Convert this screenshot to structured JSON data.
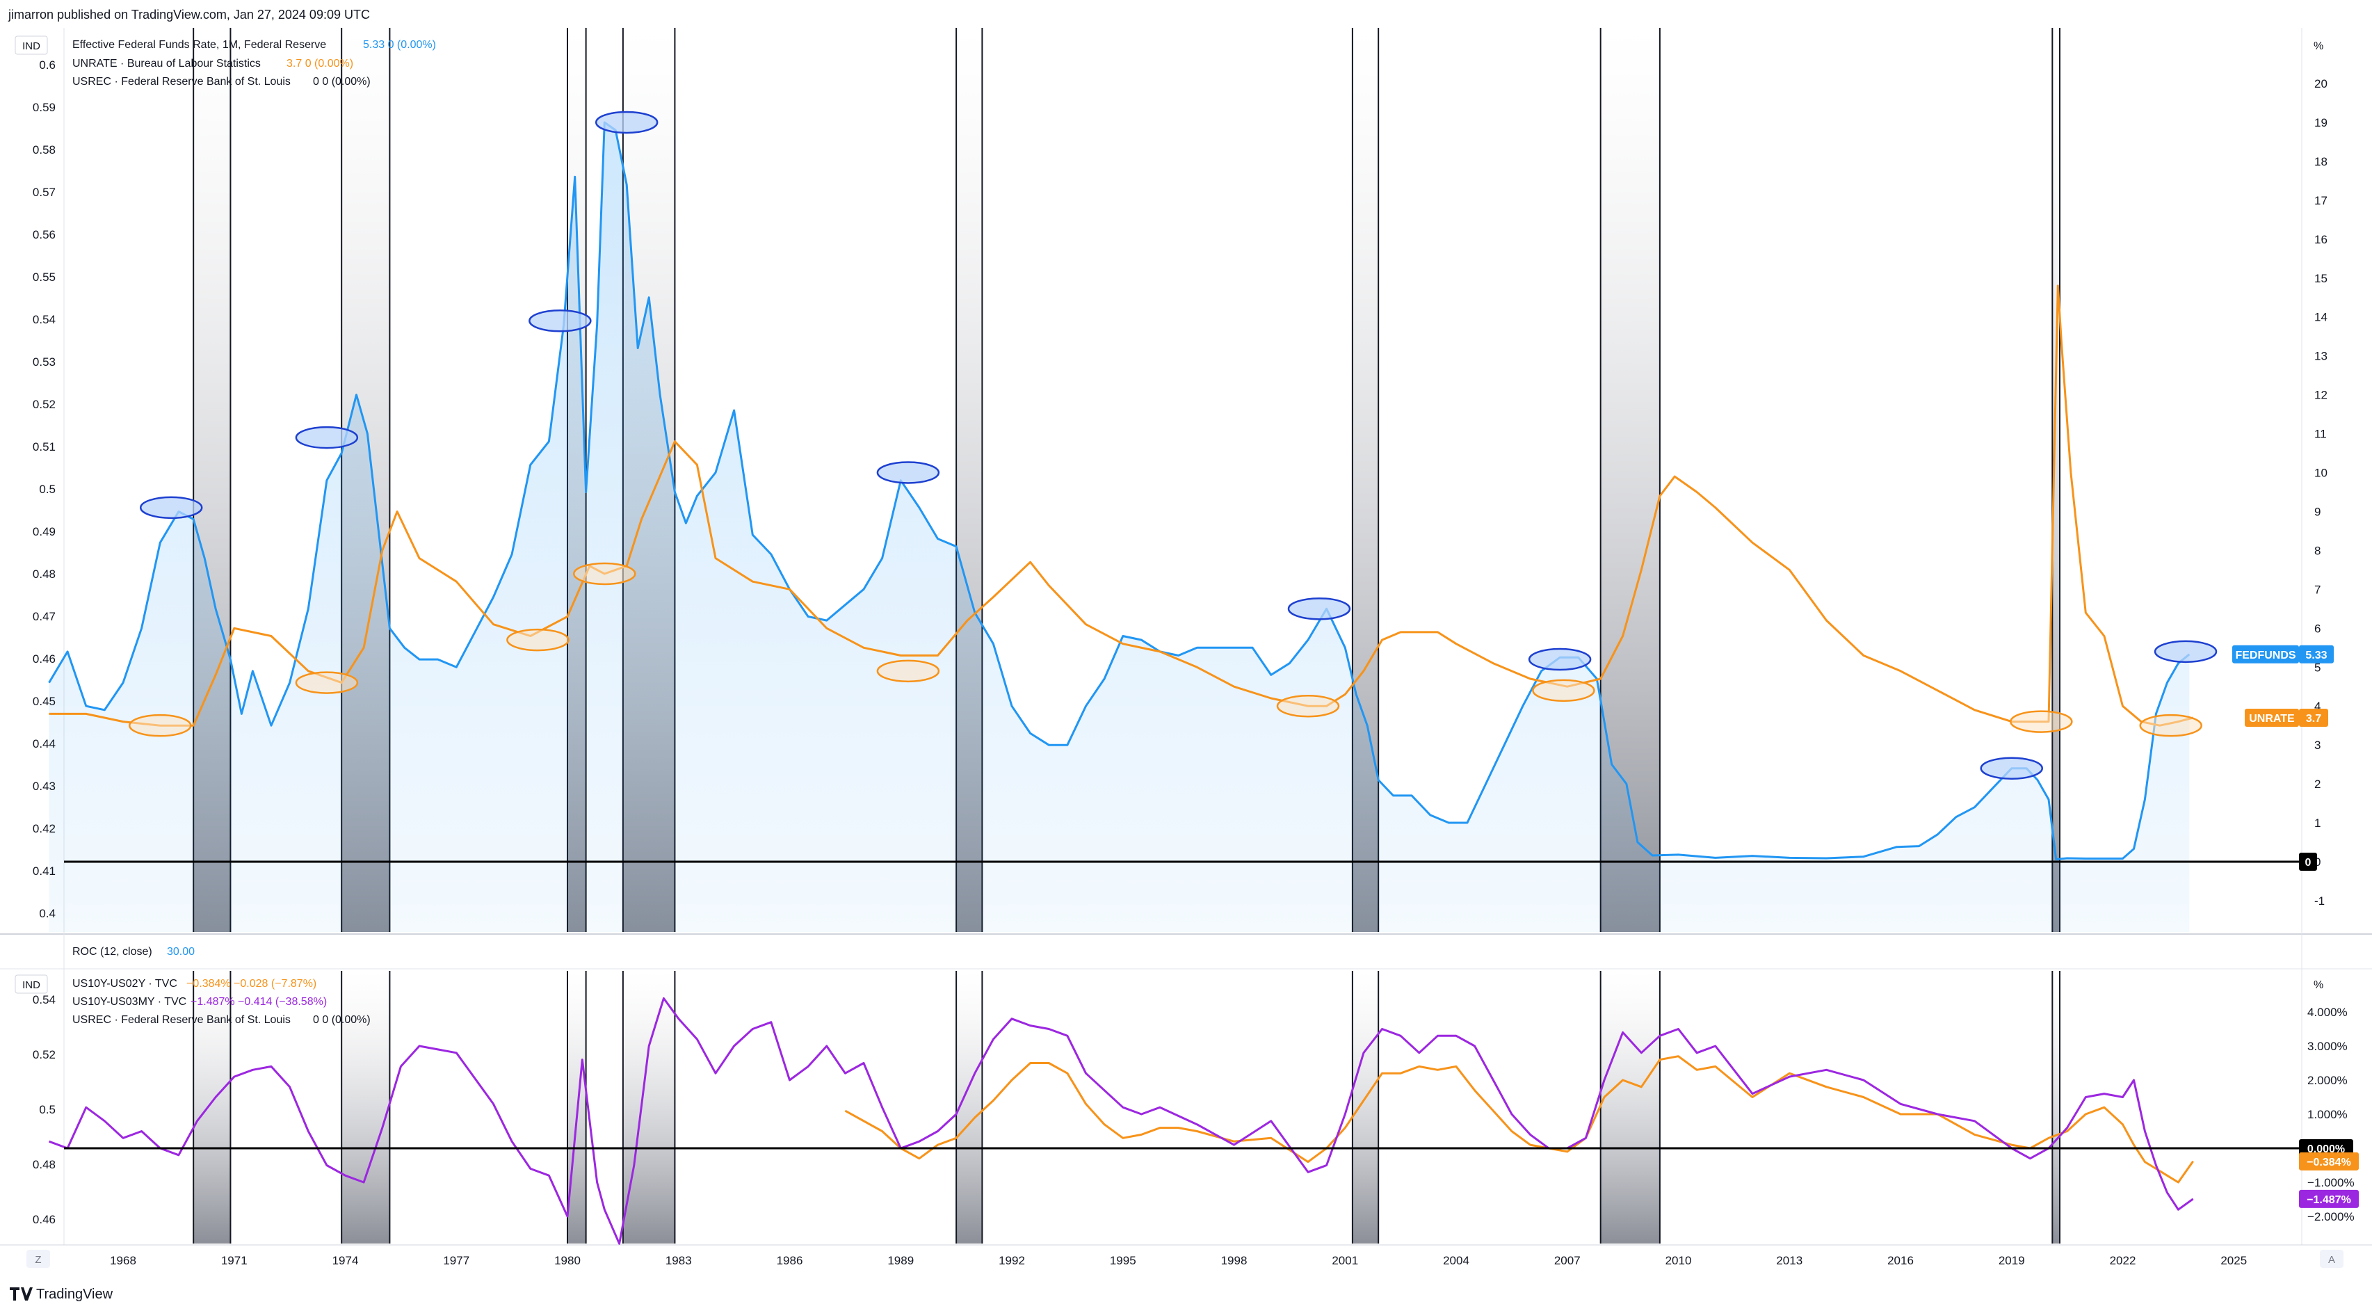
{
  "header": {
    "publisher": "jimarron published on TradingView.com, Jan 27, 2024 09:09 UTC"
  },
  "footer": {
    "brand": "TradingView",
    "left_btn": "Z",
    "right_btn": "A"
  },
  "colors": {
    "fedfunds": "#2196f3",
    "unrate": "#f7931a",
    "us10y_02y": "#f7931a",
    "us10y_03my": "#9c27e0",
    "recession": "#787b86"
  },
  "top_panel": {
    "ind_label": "IND",
    "pct_label": "%",
    "legend": [
      {
        "name": "Effective Federal Funds Rate, 1M, Federal Reserve",
        "value": "5.33 0 (0.00%)",
        "color": "#2196f3"
      },
      {
        "name": "UNRATE · Bureau of Labour Statistics",
        "value": "3.7 0 (0.00%)",
        "color": "#f7931a"
      },
      {
        "name": "USREC · Federal Reserve Bank of St. Louis",
        "value": "0 0 (0.00%)",
        "color": "#131722"
      }
    ],
    "left_axis_ticks": [
      "0.6",
      "0.59",
      "0.58",
      "0.57",
      "0.56",
      "0.55",
      "0.54",
      "0.53",
      "0.52",
      "0.51",
      "0.5",
      "0.49",
      "0.48",
      "0.47",
      "0.46",
      "0.45",
      "0.44",
      "0.43",
      "0.42",
      "0.41",
      "0.4"
    ],
    "right_axis_ticks": [
      "20",
      "19",
      "18",
      "17",
      "16",
      "15",
      "14",
      "13",
      "12",
      "11",
      "10",
      "9",
      "8",
      "7",
      "6",
      "5",
      "4",
      "3",
      "2",
      "1",
      "0",
      "-1"
    ],
    "badges": [
      {
        "text": "FEDFUNDS",
        "value": "5.33",
        "color": "#2196f3"
      },
      {
        "text": "UNRATE",
        "value": "3.7",
        "color": "#f7931a"
      },
      {
        "text": "0",
        "value": "",
        "color": "#000000"
      }
    ]
  },
  "roc_panel": {
    "label": "ROC (12, close)",
    "value": "30.00"
  },
  "bottom_panel": {
    "ind_label": "IND",
    "pct_label": "%",
    "legend": [
      {
        "name": "US10Y-US02Y · TVC",
        "value": "−0.384% −0.028 (−7.87%)",
        "color": "#f7931a"
      },
      {
        "name": "US10Y-US03MY · TVC",
        "value": "−1.487% −0.414 (−38.58%)",
        "color": "#9c27e0"
      },
      {
        "name": "USREC · Federal Reserve Bank of St. Louis",
        "value": "0 0 (0.00%)",
        "color": "#131722"
      }
    ],
    "left_axis_ticks": [
      "0.54",
      "0.52",
      "0.5",
      "0.48",
      "0.46"
    ],
    "right_axis_ticks": [
      "4.000%",
      "3.000%",
      "2.000%",
      "1.000%",
      "0.000%",
      "−1.000%",
      "−2.000%"
    ],
    "badges": [
      {
        "text": "0.000%",
        "color": "#000000"
      },
      {
        "text": "−0.384%",
        "color": "#f7931a"
      },
      {
        "text": "−1.487%",
        "color": "#9c27e0"
      }
    ]
  },
  "x_axis_ticks": [
    "1968",
    "1971",
    "1974",
    "1977",
    "1980",
    "1983",
    "1986",
    "1989",
    "1992",
    "1995",
    "1998",
    "2001",
    "2004",
    "2007",
    "2010",
    "2013",
    "2016",
    "2019",
    "2022",
    "2025"
  ],
  "chart_data": [
    {
      "type": "line",
      "title": "",
      "x_unit": "year",
      "ylabel_right": "%",
      "recessions": [
        [
          1969.9,
          1970.9
        ],
        [
          1973.9,
          1975.2
        ],
        [
          1980.0,
          1980.5
        ],
        [
          1981.5,
          1982.9
        ],
        [
          1990.5,
          1991.2
        ],
        [
          2001.2,
          2001.9
        ],
        [
          2007.9,
          2009.5
        ],
        [
          2020.1,
          2020.3
        ]
      ],
      "series": [
        {
          "name": "Effective Federal Funds Rate",
          "color": "#2196f3",
          "area": true,
          "x": [
            1966.0,
            1966.5,
            1967.0,
            1967.5,
            1968.0,
            1968.5,
            1969.0,
            1969.5,
            1969.9,
            1970.2,
            1970.5,
            1970.9,
            1971.2,
            1971.5,
            1972.0,
            1972.5,
            1973.0,
            1973.5,
            1973.9,
            1974.3,
            1974.6,
            1974.9,
            1975.2,
            1975.6,
            1976.0,
            1976.5,
            1977.0,
            1977.5,
            1978.0,
            1978.5,
            1979.0,
            1979.5,
            1979.9,
            1980.2,
            1980.5,
            1980.8,
            1981.0,
            1981.3,
            1981.6,
            1981.9,
            1982.2,
            1982.5,
            1982.9,
            1983.2,
            1983.5,
            1984.0,
            1984.5,
            1985.0,
            1985.5,
            1986.0,
            1986.5,
            1987.0,
            1987.5,
            1988.0,
            1988.5,
            1989.0,
            1989.5,
            1990.0,
            1990.5,
            1991.0,
            1991.5,
            1992.0,
            1992.5,
            1993.0,
            1993.5,
            1994.0,
            1994.5,
            1995.0,
            1995.5,
            1996.0,
            1996.5,
            1997.0,
            1997.5,
            1998.0,
            1998.5,
            1999.0,
            1999.5,
            2000.0,
            2000.5,
            2001.0,
            2001.3,
            2001.6,
            2001.9,
            2002.3,
            2002.8,
            2003.3,
            2003.8,
            2004.3,
            2004.8,
            2005.3,
            2005.8,
            2006.3,
            2006.8,
            2007.3,
            2007.8,
            2008.2,
            2008.6,
            2008.9,
            2009.3,
            2010.0,
            2011.0,
            2012.0,
            2013.0,
            2014.0,
            2015.0,
            2015.9,
            2016.5,
            2017.0,
            2017.5,
            2018.0,
            2018.5,
            2019.0,
            2019.4,
            2019.7,
            2020.0,
            2020.2,
            2020.5,
            2021.0,
            2021.5,
            2022.0,
            2022.3,
            2022.6,
            2022.9,
            2023.2,
            2023.5,
            2023.8
          ],
          "values": [
            4.6,
            5.4,
            4.0,
            3.9,
            4.6,
            6.0,
            8.2,
            9.0,
            8.8,
            7.8,
            6.5,
            5.2,
            3.8,
            4.9,
            3.5,
            4.6,
            6.5,
            9.8,
            10.5,
            12.0,
            11.0,
            8.5,
            6.0,
            5.5,
            5.2,
            5.2,
            5.0,
            5.9,
            6.8,
            7.9,
            10.2,
            10.8,
            13.8,
            17.6,
            9.5,
            13.8,
            19.0,
            18.8,
            17.4,
            13.2,
            14.5,
            12.0,
            9.5,
            8.7,
            9.4,
            10.0,
            11.6,
            8.4,
            7.9,
            7.0,
            6.3,
            6.2,
            6.6,
            7.0,
            7.8,
            9.8,
            9.1,
            8.3,
            8.1,
            6.4,
            5.6,
            4.0,
            3.3,
            3.0,
            3.0,
            4.0,
            4.7,
            5.8,
            5.7,
            5.4,
            5.3,
            5.5,
            5.5,
            5.5,
            5.5,
            4.8,
            5.1,
            5.7,
            6.5,
            5.5,
            4.3,
            3.5,
            2.1,
            1.7,
            1.7,
            1.2,
            1.0,
            1.0,
            2.0,
            3.0,
            4.0,
            4.9,
            5.25,
            5.25,
            4.7,
            2.5,
            2.0,
            0.5,
            0.16,
            0.18,
            0.1,
            0.15,
            0.1,
            0.09,
            0.13,
            0.38,
            0.4,
            0.7,
            1.15,
            1.4,
            1.9,
            2.4,
            2.4,
            2.1,
            1.6,
            0.06,
            0.09,
            0.08,
            0.08,
            0.08,
            0.33,
            1.6,
            3.8,
            4.6,
            5.1,
            5.33
          ]
        },
        {
          "name": "UNRATE",
          "color": "#f7931a",
          "area": false,
          "x": [
            1966.0,
            1967.0,
            1968.0,
            1969.0,
            1969.9,
            1970.5,
            1971.0,
            1972.0,
            1973.0,
            1973.9,
            1974.5,
            1975.0,
            1975.4,
            1976.0,
            1977.0,
            1978.0,
            1979.0,
            1980.0,
            1980.6,
            1981.0,
            1981.6,
            1982.0,
            1982.9,
            1983.5,
            1984.0,
            1985.0,
            1986.0,
            1987.0,
            1988.0,
            1989.0,
            1990.0,
            1990.8,
            1991.5,
            1992.5,
            1993.0,
            1994.0,
            1995.0,
            1996.0,
            1997.0,
            1998.0,
            1999.0,
            2000.0,
            2000.5,
            2001.0,
            2001.5,
            2002.0,
            2002.5,
            2003.5,
            2004.0,
            2005.0,
            2006.0,
            2007.0,
            2007.9,
            2008.5,
            2009.0,
            2009.5,
            2009.9,
            2010.5,
            2011.0,
            2012.0,
            2013.0,
            2014.0,
            2015.0,
            2016.0,
            2017.0,
            2018.0,
            2019.0,
            2020.0,
            2020.25,
            2020.35,
            2020.6,
            2021.0,
            2021.5,
            2022.0,
            2022.5,
            2023.0,
            2023.5,
            2023.9
          ],
          "values": [
            3.8,
            3.8,
            3.6,
            3.5,
            3.5,
            4.8,
            6.0,
            5.8,
            4.9,
            4.6,
            5.5,
            8.0,
            9.0,
            7.8,
            7.2,
            6.1,
            5.8,
            6.3,
            7.6,
            7.4,
            7.6,
            8.8,
            10.8,
            10.2,
            7.8,
            7.2,
            7.0,
            6.0,
            5.5,
            5.3,
            5.3,
            6.2,
            6.8,
            7.7,
            7.1,
            6.1,
            5.6,
            5.4,
            5.0,
            4.5,
            4.2,
            4.0,
            4.0,
            4.3,
            4.9,
            5.7,
            5.9,
            5.9,
            5.6,
            5.1,
            4.7,
            4.5,
            4.7,
            5.8,
            7.5,
            9.4,
            9.9,
            9.5,
            9.1,
            8.2,
            7.5,
            6.2,
            5.3,
            4.9,
            4.4,
            3.9,
            3.6,
            3.6,
            14.8,
            13.3,
            10.0,
            6.4,
            5.8,
            4.0,
            3.6,
            3.5,
            3.6,
            3.7
          ]
        }
      ]
    },
    {
      "type": "line",
      "title": "",
      "x_unit": "year",
      "ylabel_right": "%",
      "recessions": [
        [
          1969.9,
          1970.9
        ],
        [
          1973.9,
          1975.2
        ],
        [
          1980.0,
          1980.5
        ],
        [
          1981.5,
          1982.9
        ],
        [
          1990.5,
          1991.2
        ],
        [
          2001.2,
          2001.9
        ],
        [
          2007.9,
          2009.5
        ],
        [
          2020.1,
          2020.3
        ]
      ],
      "series": [
        {
          "name": "US10Y-US02Y",
          "color": "#f7931a",
          "x": [
            1987.5,
            1988.5,
            1989.0,
            1989.5,
            1990.0,
            1990.5,
            1991.0,
            1991.5,
            1992.0,
            1992.5,
            1993.0,
            1993.5,
            1994.0,
            1994.5,
            1995.0,
            1995.5,
            1996.0,
            1996.5,
            1997.0,
            1998.0,
            1999.0,
            2000.0,
            2000.5,
            2001.0,
            2001.5,
            2002.0,
            2002.5,
            2003.0,
            2003.5,
            2004.0,
            2004.5,
            2005.0,
            2005.5,
            2006.0,
            2006.5,
            2007.0,
            2007.5,
            2008.0,
            2008.5,
            2009.0,
            2009.5,
            2010.0,
            2010.5,
            2011.0,
            2012.0,
            2013.0,
            2014.0,
            2015.0,
            2016.0,
            2017.0,
            2018.0,
            2019.0,
            2019.5,
            2020.0,
            2020.5,
            2021.0,
            2021.5,
            2022.0,
            2022.3,
            2022.6,
            2022.9,
            2023.2,
            2023.5,
            2023.9
          ],
          "values": [
            1.1,
            0.5,
            0.0,
            -0.3,
            0.1,
            0.3,
            0.9,
            1.4,
            2.0,
            2.5,
            2.5,
            2.2,
            1.3,
            0.7,
            0.3,
            0.4,
            0.6,
            0.6,
            0.5,
            0.2,
            0.3,
            -0.4,
            0.0,
            0.6,
            1.4,
            2.2,
            2.2,
            2.4,
            2.3,
            2.4,
            1.7,
            1.1,
            0.5,
            0.1,
            0.0,
            -0.1,
            0.3,
            1.5,
            2.0,
            1.8,
            2.6,
            2.7,
            2.3,
            2.4,
            1.5,
            2.2,
            1.8,
            1.5,
            1.0,
            1.0,
            0.4,
            0.1,
            0.0,
            0.3,
            0.5,
            1.0,
            1.2,
            0.7,
            0.1,
            -0.4,
            -0.6,
            -0.8,
            -1.0,
            -0.384
          ]
        },
        {
          "name": "US10Y-US03MY",
          "color": "#9c27e0",
          "x": [
            1966.0,
            1966.5,
            1967.0,
            1967.5,
            1968.0,
            1968.5,
            1969.0,
            1969.5,
            1970.0,
            1970.5,
            1971.0,
            1971.5,
            1972.0,
            1972.5,
            1973.0,
            1973.5,
            1974.0,
            1974.5,
            1975.0,
            1975.5,
            1976.0,
            1977.0,
            1978.0,
            1978.5,
            1979.0,
            1979.5,
            1980.0,
            1980.4,
            1980.8,
            1981.0,
            1981.4,
            1981.8,
            1982.2,
            1982.6,
            1983.0,
            1983.5,
            1984.0,
            1984.5,
            1985.0,
            1985.5,
            1986.0,
            1986.5,
            1987.0,
            1987.5,
            1988.0,
            1988.5,
            1989.0,
            1989.5,
            1990.0,
            1990.5,
            1991.0,
            1991.5,
            1992.0,
            1992.5,
            1993.0,
            1993.5,
            1994.0,
            1994.5,
            1995.0,
            1995.5,
            1996.0,
            1997.0,
            1998.0,
            1999.0,
            2000.0,
            2000.5,
            2001.0,
            2001.5,
            2002.0,
            2002.5,
            2003.0,
            2003.5,
            2004.0,
            2004.5,
            2005.0,
            2005.5,
            2006.0,
            2006.5,
            2007.0,
            2007.5,
            2008.0,
            2008.5,
            2009.0,
            2009.5,
            2010.0,
            2010.5,
            2011.0,
            2012.0,
            2013.0,
            2014.0,
            2015.0,
            2016.0,
            2017.0,
            2018.0,
            2019.0,
            2019.5,
            2020.0,
            2020.5,
            2021.0,
            2021.5,
            2022.0,
            2022.3,
            2022.6,
            2022.9,
            2023.2,
            2023.5,
            2023.9
          ],
          "values": [
            0.2,
            0.0,
            1.2,
            0.8,
            0.3,
            0.5,
            0.0,
            -0.2,
            0.8,
            1.5,
            2.1,
            2.3,
            2.4,
            1.8,
            0.5,
            -0.5,
            -0.8,
            -1.0,
            0.6,
            2.4,
            3.0,
            2.8,
            1.3,
            0.2,
            -0.6,
            -0.8,
            -2.0,
            2.6,
            -1.0,
            -1.8,
            -2.8,
            -0.5,
            3.0,
            4.4,
            3.8,
            3.2,
            2.2,
            3.0,
            3.5,
            3.7,
            2.0,
            2.4,
            3.0,
            2.2,
            2.5,
            1.2,
            0.0,
            0.2,
            0.5,
            1.0,
            2.2,
            3.2,
            3.8,
            3.6,
            3.5,
            3.3,
            2.2,
            1.7,
            1.2,
            1.0,
            1.2,
            0.7,
            0.1,
            0.8,
            -0.7,
            -0.5,
            1.0,
            2.8,
            3.5,
            3.3,
            2.8,
            3.3,
            3.3,
            3.0,
            2.0,
            1.0,
            0.4,
            0.0,
            0.0,
            0.3,
            2.0,
            3.4,
            2.8,
            3.3,
            3.5,
            2.8,
            3.0,
            1.6,
            2.1,
            2.3,
            2.0,
            1.3,
            1.0,
            0.8,
            0.0,
            -0.3,
            0.0,
            0.6,
            1.5,
            1.6,
            1.5,
            2.0,
            0.5,
            -0.5,
            -1.3,
            -1.8,
            -1.487
          ]
        }
      ]
    }
  ]
}
